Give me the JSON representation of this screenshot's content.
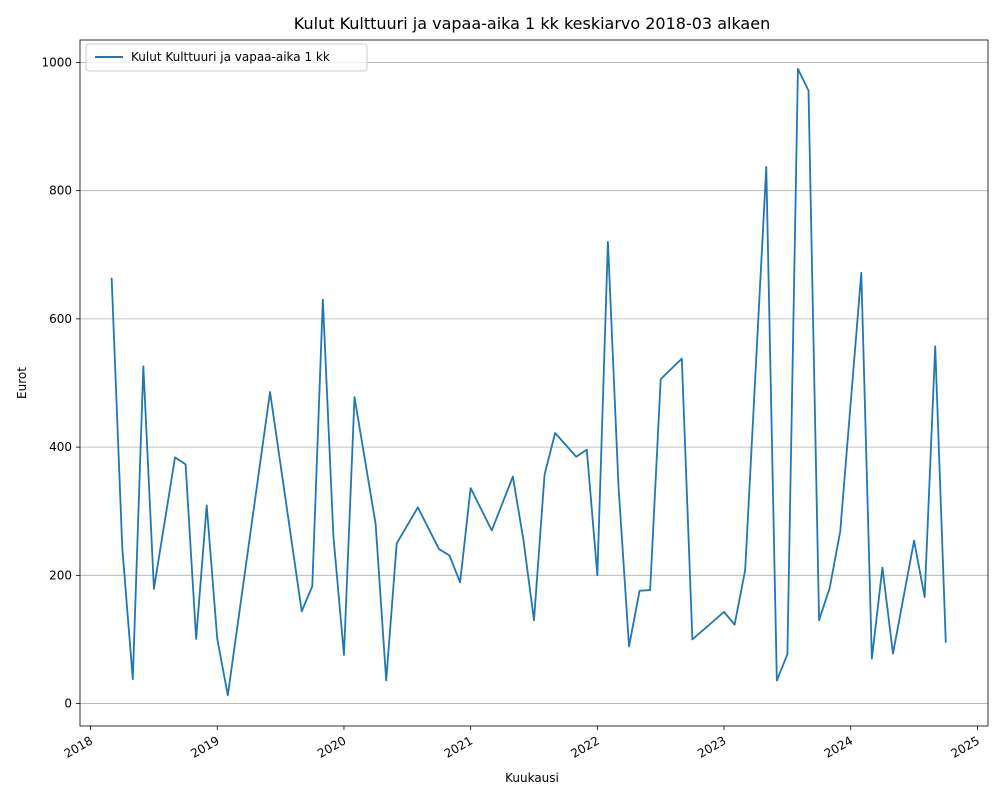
{
  "chart_data": {
    "type": "line",
    "title": "Kulut Kulttuuri ja vapaa-aika 1 kk keskiarvo 2018-03 alkaen",
    "xlabel": "Kuukausi",
    "ylabel": "Eurot",
    "xlim": [
      "2017-12-01",
      "2025-02-01"
    ],
    "ylim": [
      -35,
      1035
    ],
    "yticks": [
      0,
      200,
      400,
      600,
      800,
      1000
    ],
    "xticks": [
      "2018",
      "2019",
      "2020",
      "2021",
      "2022",
      "2023",
      "2024",
      "2025"
    ],
    "grid": "y",
    "legend": "top-left",
    "color": "#1f77b4",
    "series": [
      {
        "name": "Kulut Kulttuuri ja vapaa-aika 1 kk",
        "points": [
          [
            "2018-03",
            663
          ],
          [
            "2018-04",
            244
          ],
          [
            "2018-05",
            38
          ],
          [
            "2018-06",
            526
          ],
          [
            "2018-07",
            179
          ],
          [
            "2018-09",
            384
          ],
          [
            "2018-10",
            373
          ],
          [
            "2018-11",
            101
          ],
          [
            "2018-12",
            309
          ],
          [
            "2019-01",
            101
          ],
          [
            "2019-02",
            13
          ],
          [
            "2019-06",
            486
          ],
          [
            "2019-09",
            144
          ],
          [
            "2019-10",
            183
          ],
          [
            "2019-11",
            630
          ],
          [
            "2019-12",
            261
          ],
          [
            "2020-01",
            76
          ],
          [
            "2020-02",
            478
          ],
          [
            "2020-04",
            280
          ],
          [
            "2020-05",
            36
          ],
          [
            "2020-06",
            250
          ],
          [
            "2020-08",
            306
          ],
          [
            "2020-10",
            241
          ],
          [
            "2020-11",
            231
          ],
          [
            "2020-12",
            189
          ],
          [
            "2021-01",
            336
          ],
          [
            "2021-03",
            270
          ],
          [
            "2021-05",
            354
          ],
          [
            "2021-06",
            255
          ],
          [
            "2021-07",
            130
          ],
          [
            "2021-08",
            357
          ],
          [
            "2021-09",
            422
          ],
          [
            "2021-11",
            385
          ],
          [
            "2021-12",
            396
          ],
          [
            "2022-01",
            200
          ],
          [
            "2022-02",
            720
          ],
          [
            "2022-03",
            340
          ],
          [
            "2022-04",
            89
          ],
          [
            "2022-05",
            176
          ],
          [
            "2022-06",
            177
          ],
          [
            "2022-07",
            506
          ],
          [
            "2022-09",
            538
          ],
          [
            "2022-10",
            100
          ],
          [
            "2023-01",
            143
          ],
          [
            "2023-02",
            123
          ],
          [
            "2023-03",
            208
          ],
          [
            "2023-05",
            837
          ],
          [
            "2023-06",
            36
          ],
          [
            "2023-07",
            77
          ],
          [
            "2023-08",
            990
          ],
          [
            "2023-09",
            956
          ],
          [
            "2023-10",
            130
          ],
          [
            "2023-11",
            180
          ],
          [
            "2023-12",
            268
          ],
          [
            "2024-02",
            672
          ],
          [
            "2024-03",
            70
          ],
          [
            "2024-04",
            212
          ],
          [
            "2024-05",
            78
          ],
          [
            "2024-07",
            254
          ],
          [
            "2024-08",
            166
          ],
          [
            "2024-09",
            557
          ],
          [
            "2024-10",
            96
          ]
        ]
      }
    ]
  }
}
